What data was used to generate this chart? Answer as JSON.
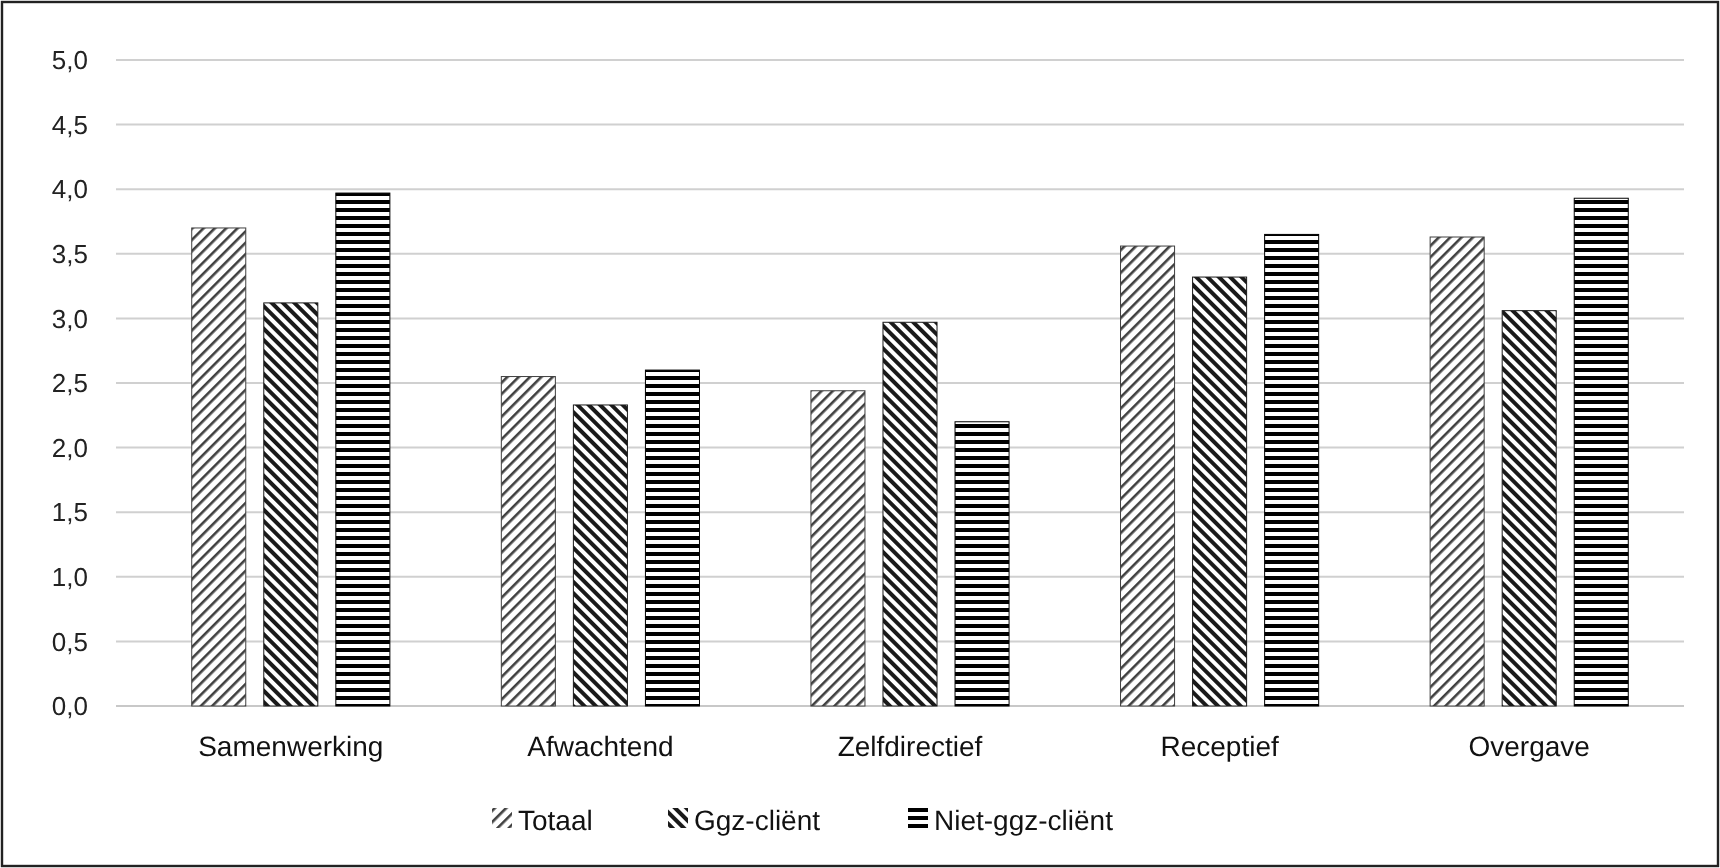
{
  "chart_data": {
    "type": "bar",
    "categories": [
      "Samenwerking",
      "Afwachtend",
      "Zelfdirectief",
      "Receptief",
      "Overgave"
    ],
    "series": [
      {
        "name": "Totaal",
        "color": "#404040",
        "values": [
          3.7,
          2.55,
          2.44,
          3.56,
          3.63
        ]
      },
      {
        "name": "Ggz-cliënt",
        "color": "#1a1a1a",
        "values": [
          3.12,
          2.33,
          2.97,
          3.32,
          3.06
        ]
      },
      {
        "name": "Niet-ggz-cliënt",
        "color": "#000000",
        "values": [
          3.97,
          2.6,
          2.2,
          3.65,
          3.93
        ]
      }
    ],
    "ylim": [
      0,
      5
    ],
    "yticks": [
      {
        "value": 0,
        "label": "0,0"
      },
      {
        "value": 0.5,
        "label": "0,5"
      },
      {
        "value": 1,
        "label": "1,0"
      },
      {
        "value": 1.5,
        "label": "1,5"
      },
      {
        "value": 2,
        "label": "2,0"
      },
      {
        "value": 2.5,
        "label": "2,5"
      },
      {
        "value": 3,
        "label": "3,0"
      },
      {
        "value": 3.5,
        "label": "3,5"
      },
      {
        "value": 4,
        "label": "4,0"
      },
      {
        "value": 4.5,
        "label": "4,5"
      },
      {
        "value": 5,
        "label": "5,0"
      }
    ],
    "grid": "y",
    "legend": "bottom"
  }
}
